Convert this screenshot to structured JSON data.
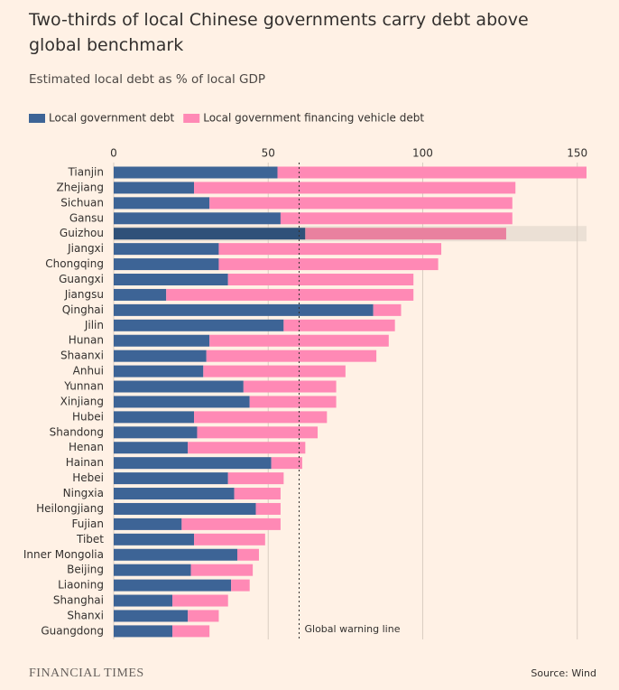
{
  "chart_data": {
    "type": "stacked-barh",
    "title": "Two-thirds of local Chinese governments carry debt above global benchmark",
    "subtitle": "Estimated local debt as % of local GDP",
    "categories": [
      "Tianjin",
      "Zhejiang",
      "Sichuan",
      "Gansu",
      "Guizhou",
      "Jiangxi",
      "Chongqing",
      "Guangxi",
      "Jiangsu",
      "Qinghai",
      "Jilin",
      "Hunan",
      "Shaanxi",
      "Anhui",
      "Yunnan",
      "Xinjiang",
      "Hubei",
      "Shandong",
      "Henan",
      "Hainan",
      "Hebei",
      "Ningxia",
      "Heilongjiang",
      "Fujian",
      "Tibet",
      "Inner Mongolia",
      "Beijing",
      "Liaoning",
      "Shanghai",
      "Shanxi",
      "Guangdong"
    ],
    "series": [
      {
        "name": "Local government debt",
        "color": "#3d6496",
        "highlight_color": "#2f5179",
        "values": [
          53,
          26,
          31,
          54,
          62,
          34,
          34,
          37,
          17,
          84,
          55,
          31,
          30,
          29,
          42,
          44,
          26,
          27,
          24,
          51,
          37,
          39,
          46,
          22,
          26,
          40,
          25,
          38,
          19,
          24,
          19
        ]
      },
      {
        "name": "Local government financing vehicle debt",
        "color": "#ff89b5",
        "highlight_color": "#e9819f",
        "values": [
          100,
          104,
          98,
          75,
          65,
          72,
          71,
          60,
          80,
          9,
          36,
          58,
          55,
          46,
          30,
          28,
          43,
          39,
          38,
          10,
          18,
          15,
          8,
          32,
          23,
          7,
          20,
          6,
          18,
          10,
          12
        ]
      }
    ],
    "highlight": "Guizhou",
    "xlim": [
      0,
      153
    ],
    "xticks": [
      0,
      50,
      100,
      150
    ],
    "grid": true,
    "reference_line": {
      "value": 60,
      "label": "Global warning line"
    },
    "brand": "FINANCIAL TIMES",
    "source": "Source: Wind"
  }
}
